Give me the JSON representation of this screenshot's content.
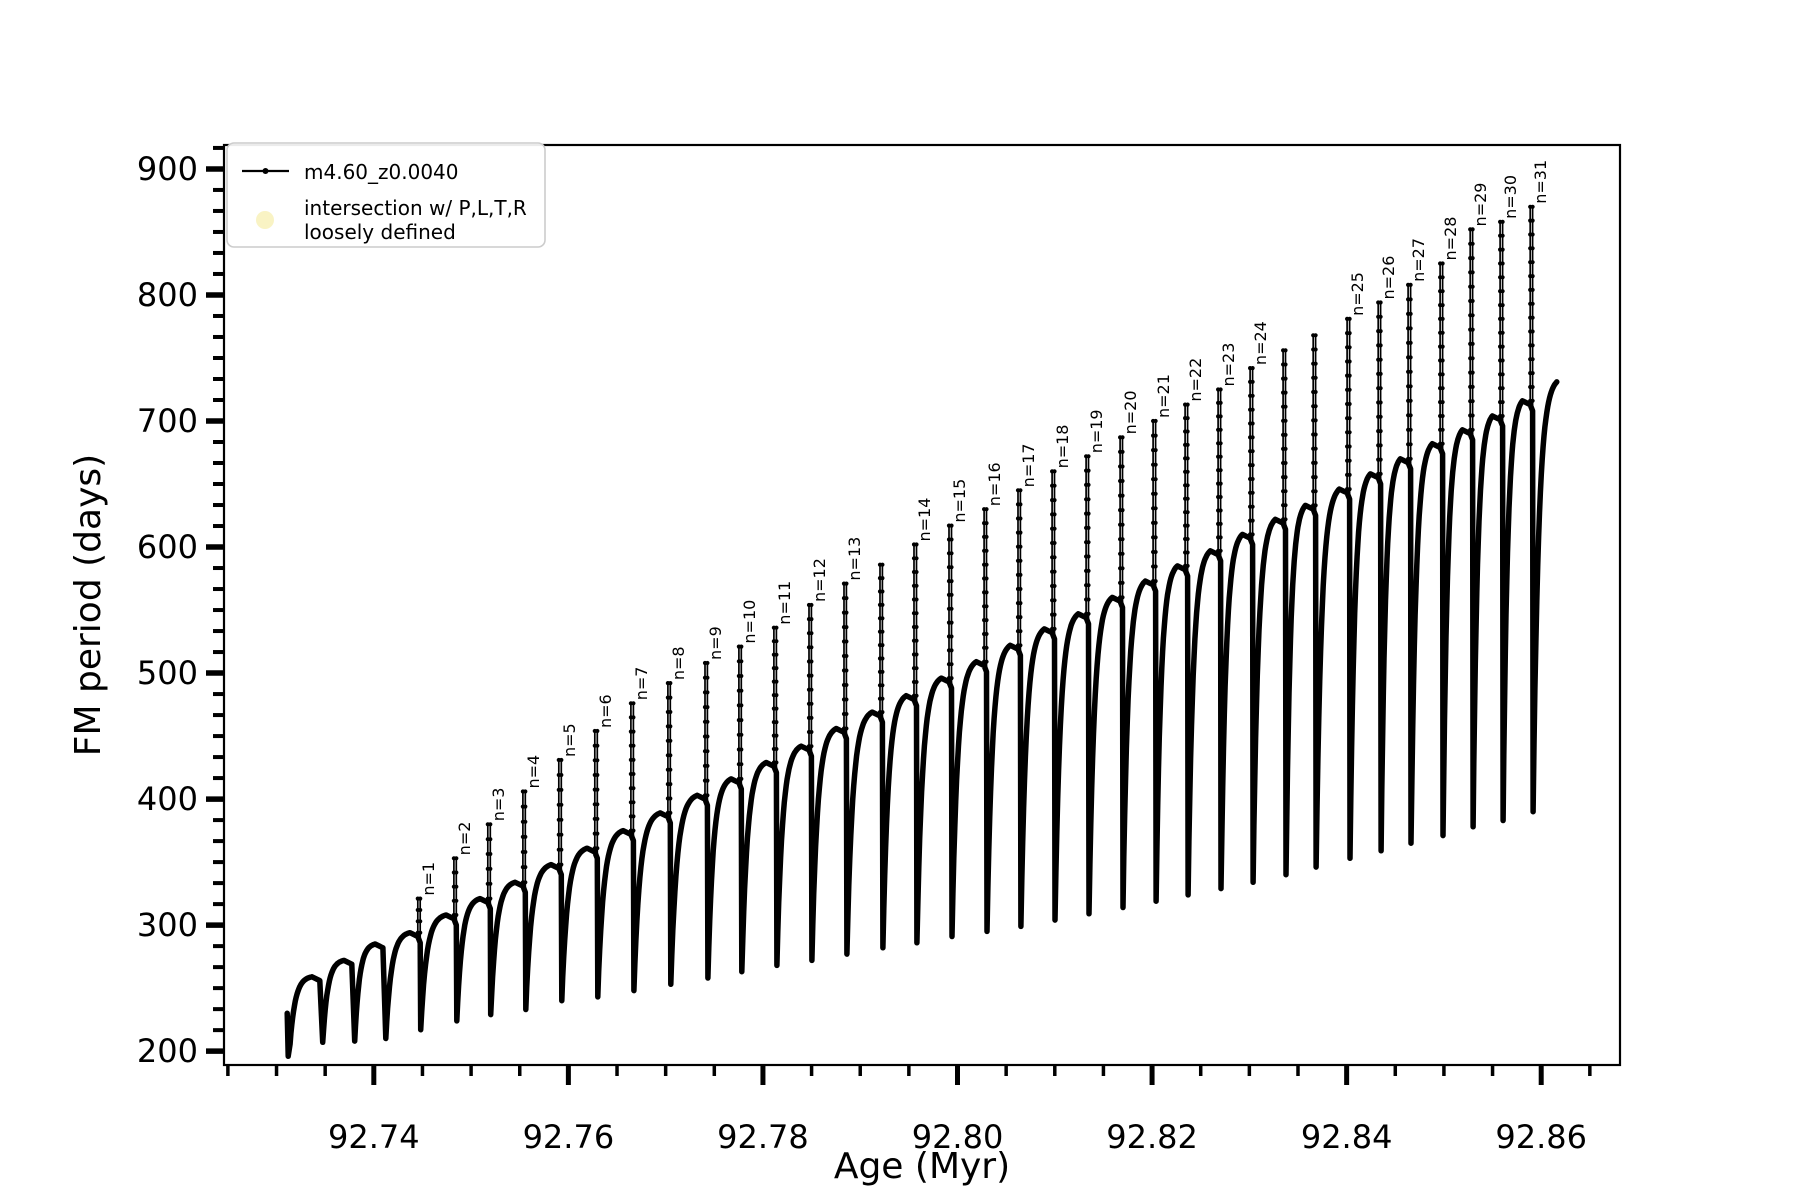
{
  "chart_data": {
    "type": "line",
    "title": "",
    "xlabel": "Age (Myr)",
    "ylabel": "FM period (days)",
    "xlim": [
      92.7246,
      92.8681
    ],
    "ylim": [
      189,
      919
    ],
    "grid": false,
    "line_color": "#000000",
    "x_major_ticks": [
      92.74,
      92.76,
      92.78,
      92.8,
      92.82,
      92.84,
      92.86
    ],
    "x_major_labels": [
      "92.74",
      "92.76",
      "92.78",
      "92.80",
      "92.82",
      "92.84",
      "92.86"
    ],
    "x_minor_base": 92.72,
    "x_minor_step": 0.005,
    "y_major_ticks": [
      200,
      300,
      400,
      500,
      600,
      700,
      800,
      900
    ],
    "y_major_labels": [
      "200",
      "300",
      "400",
      "500",
      "600",
      "700",
      "800",
      "900"
    ],
    "y_minor_divisions": 6,
    "legend": {
      "position": "upper-left",
      "border_color": "#cccccc",
      "items": [
        {
          "marker": "line-dot",
          "color": "#000000",
          "label": "m4.60_z0.0040"
        },
        {
          "marker": "circle",
          "color": "#f9f3c4",
          "label_lines": [
            "intersection w/ P,L,T,R",
            "loosely defined"
          ]
        }
      ]
    },
    "series_name": "m4.60_z0.0040",
    "start": {
      "age": 92.7311,
      "period": 230,
      "dip_period": 196
    },
    "end": {
      "age": 92.8616,
      "period": 731
    },
    "pulses": [
      {
        "label": null,
        "age": 92.73445,
        "peak": 259,
        "spike_top": null,
        "min_after": 207
      },
      {
        "label": null,
        "age": 92.73774,
        "peak": 272,
        "spike_top": null,
        "min_after": 208
      },
      {
        "label": null,
        "age": 92.74093,
        "peak": 285,
        "spike_top": null,
        "min_after": 210
      },
      {
        "label": "n=1",
        "age": 92.74452,
        "peak": 294,
        "spike_top": 321,
        "min_after": 217
      },
      {
        "label": "n=2",
        "age": 92.74823,
        "peak": 308,
        "spike_top": 353,
        "min_after": 224
      },
      {
        "label": "n=3",
        "age": 92.75172,
        "peak": 321,
        "spike_top": 380,
        "min_after": 229
      },
      {
        "label": "n=4",
        "age": 92.75532,
        "peak": 334,
        "spike_top": 406,
        "min_after": 233
      },
      {
        "label": "n=5",
        "age": 92.75902,
        "peak": 348,
        "spike_top": 431,
        "min_after": 240
      },
      {
        "label": "n=6",
        "age": 92.76272,
        "peak": 361,
        "spike_top": 454,
        "min_after": 243
      },
      {
        "label": "n=7",
        "age": 92.76643,
        "peak": 375,
        "spike_top": 476,
        "min_after": 248
      },
      {
        "label": "n=8",
        "age": 92.77023,
        "peak": 389,
        "spike_top": 492,
        "min_after": 253
      },
      {
        "label": "n=9",
        "age": 92.77404,
        "peak": 403,
        "spike_top": 508,
        "min_after": 258
      },
      {
        "label": "n=10",
        "age": 92.77753,
        "peak": 416,
        "spike_top": 521,
        "min_after": 263
      },
      {
        "label": "n=11",
        "age": 92.78113,
        "peak": 429,
        "spike_top": 536,
        "min_after": 268
      },
      {
        "label": "n=12",
        "age": 92.78473,
        "peak": 442,
        "spike_top": 554,
        "min_after": 272
      },
      {
        "label": "n=13",
        "age": 92.78833,
        "peak": 456,
        "spike_top": 571,
        "min_after": 277
      },
      {
        "label": null,
        "age": 92.79203,
        "peak": 469,
        "spike_top": 586,
        "min_after": 282
      },
      {
        "label": "n=14",
        "age": 92.79553,
        "peak": 482,
        "spike_top": 602,
        "min_after": 286
      },
      {
        "label": "n=15",
        "age": 92.79913,
        "peak": 496,
        "spike_top": 617,
        "min_after": 291
      },
      {
        "label": "n=16",
        "age": 92.80273,
        "peak": 509,
        "spike_top": 630,
        "min_after": 295
      },
      {
        "label": "n=17",
        "age": 92.80622,
        "peak": 522,
        "spike_top": 645,
        "min_after": 299
      },
      {
        "label": "n=18",
        "age": 92.80972,
        "peak": 535,
        "spike_top": 660,
        "min_after": 304
      },
      {
        "label": "n=19",
        "age": 92.81322,
        "peak": 547,
        "spike_top": 672,
        "min_after": 309
      },
      {
        "label": "n=20",
        "age": 92.81671,
        "peak": 560,
        "spike_top": 687,
        "min_after": 314
      },
      {
        "label": "n=21",
        "age": 92.82011,
        "peak": 573,
        "spike_top": 700,
        "min_after": 319
      },
      {
        "label": "n=22",
        "age": 92.8234,
        "peak": 585,
        "spike_top": 713,
        "min_after": 324
      },
      {
        "label": "n=23",
        "age": 92.82679,
        "peak": 597,
        "spike_top": 725,
        "min_after": 329
      },
      {
        "label": "n=24",
        "age": 92.83008,
        "peak": 610,
        "spike_top": 742,
        "min_after": 334
      },
      {
        "label": null,
        "age": 92.83347,
        "peak": 622,
        "spike_top": 756,
        "min_after": 340
      },
      {
        "label": null,
        "age": 92.83656,
        "peak": 633,
        "spike_top": 768,
        "min_after": 346
      },
      {
        "label": "n=25",
        "age": 92.84005,
        "peak": 646,
        "spike_top": 781,
        "min_after": 353
      },
      {
        "label": "n=26",
        "age": 92.84324,
        "peak": 658,
        "spike_top": 794,
        "min_after": 359
      },
      {
        "label": "n=27",
        "age": 92.84632,
        "peak": 670,
        "spike_top": 808,
        "min_after": 365
      },
      {
        "label": "n=28",
        "age": 92.84961,
        "peak": 682,
        "spike_top": 825,
        "min_after": 371
      },
      {
        "label": "n=29",
        "age": 92.8527,
        "peak": 693,
        "spike_top": 852,
        "min_after": 378
      },
      {
        "label": "n=30",
        "age": 92.85578,
        "peak": 704,
        "spike_top": 858,
        "min_after": 383
      },
      {
        "label": "n=31",
        "age": 92.85887,
        "peak": 716,
        "spike_top": 870,
        "min_after": 390
      }
    ]
  }
}
